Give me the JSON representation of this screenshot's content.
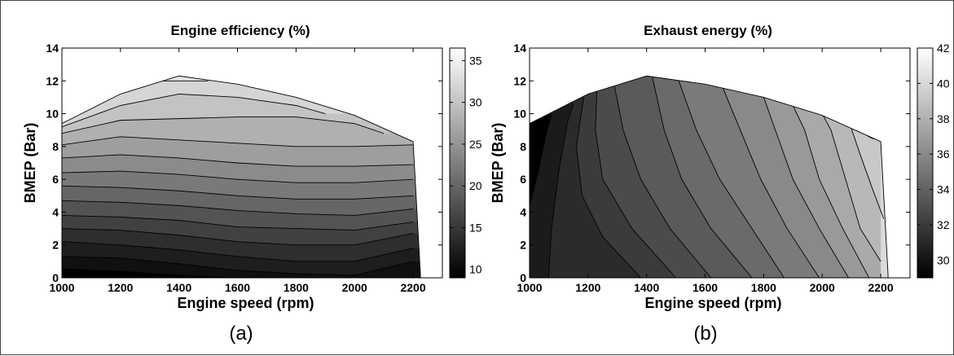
{
  "chart_data": [
    {
      "type": "heatmap",
      "subtype": "filled-contour",
      "title": "Engine efficiency (%)",
      "xlabel": "Engine speed (rpm)",
      "ylabel": "BMEP (Bar)",
      "caption": "(a)",
      "xlim": [
        1000,
        2300
      ],
      "ylim": [
        0,
        14
      ],
      "xticks": [
        "1000",
        "1200",
        "1400",
        "1600",
        "1800",
        "2000",
        "2200"
      ],
      "yticks": [
        "0",
        "2",
        "4",
        "6",
        "8",
        "10",
        "12",
        "14"
      ],
      "colorbar": {
        "range": [
          9,
          36.5
        ],
        "ticks": [
          "10",
          "15",
          "20",
          "25",
          "30",
          "35"
        ],
        "colormap": "gray"
      },
      "boundary": [
        [
          1000,
          0
        ],
        [
          1000,
          9.4
        ],
        [
          1200,
          11.2
        ],
        [
          1400,
          12.3
        ],
        [
          1600,
          11.8
        ],
        [
          1800,
          11.0
        ],
        [
          2000,
          9.9
        ],
        [
          2200,
          8.3
        ],
        [
          2225,
          0.2
        ],
        [
          2225,
          0
        ]
      ],
      "contours": [
        {
          "level": 10,
          "points": [
            [
              1000,
              0.55
            ],
            [
              1200,
              0.4
            ],
            [
              1400,
              0.15
            ],
            [
              1600,
              0.0
            ]
          ]
        },
        {
          "level": 11.5,
          "points": [
            [
              1000,
              1.3
            ],
            [
              1200,
              1.2
            ],
            [
              1400,
              0.85
            ],
            [
              1600,
              0.45
            ],
            [
              1800,
              0.25
            ],
            [
              2000,
              0.15
            ],
            [
              2200,
              1.0
            ]
          ]
        },
        {
          "level": 13,
          "points": [
            [
              1000,
              2.2
            ],
            [
              1200,
              2.0
            ],
            [
              1400,
              1.7
            ],
            [
              1600,
              1.3
            ],
            [
              1800,
              1.0
            ],
            [
              2000,
              1.0
            ],
            [
              2200,
              1.8
            ]
          ]
        },
        {
          "level": 15,
          "points": [
            [
              1000,
              3.0
            ],
            [
              1200,
              2.9
            ],
            [
              1400,
              2.6
            ],
            [
              1600,
              2.2
            ],
            [
              1800,
              2.0
            ],
            [
              2000,
              2.0
            ],
            [
              2200,
              2.7
            ]
          ]
        },
        {
          "level": 17,
          "points": [
            [
              1000,
              3.8
            ],
            [
              1200,
              3.7
            ],
            [
              1400,
              3.5
            ],
            [
              1600,
              3.1
            ],
            [
              1800,
              3.0
            ],
            [
              2000,
              2.9
            ],
            [
              2200,
              3.4
            ]
          ]
        },
        {
          "level": 19,
          "points": [
            [
              1000,
              4.7
            ],
            [
              1200,
              4.6
            ],
            [
              1400,
              4.4
            ],
            [
              1600,
              4.1
            ],
            [
              1800,
              3.9
            ],
            [
              2000,
              3.8
            ],
            [
              2200,
              4.2
            ]
          ]
        },
        {
          "level": 21,
          "points": [
            [
              1000,
              5.6
            ],
            [
              1200,
              5.5
            ],
            [
              1400,
              5.3
            ],
            [
              1600,
              5.0
            ],
            [
              1800,
              4.8
            ],
            [
              2000,
              4.8
            ],
            [
              2200,
              5.0
            ]
          ]
        },
        {
          "level": 23,
          "points": [
            [
              1000,
              6.4
            ],
            [
              1200,
              6.5
            ],
            [
              1400,
              6.3
            ],
            [
              1600,
              6.0
            ],
            [
              1800,
              5.8
            ],
            [
              2000,
              5.8
            ],
            [
              2200,
              6.0
            ]
          ]
        },
        {
          "level": 25,
          "points": [
            [
              1000,
              7.3
            ],
            [
              1200,
              7.5
            ],
            [
              1400,
              7.3
            ],
            [
              1600,
              7.0
            ],
            [
              1800,
              6.8
            ],
            [
              2000,
              6.8
            ],
            [
              2200,
              6.9
            ]
          ]
        },
        {
          "level": 27,
          "points": [
            [
              1000,
              8.1
            ],
            [
              1200,
              8.6
            ],
            [
              1400,
              8.4
            ],
            [
              1600,
              8.2
            ],
            [
              1800,
              8.0
            ],
            [
              2000,
              8.0
            ],
            [
              2200,
              8.1
            ]
          ]
        },
        {
          "level": 29,
          "points": [
            [
              1000,
              8.8
            ],
            [
              1200,
              9.6
            ],
            [
              1400,
              9.7
            ],
            [
              1600,
              9.8
            ],
            [
              1800,
              9.8
            ],
            [
              2000,
              9.4
            ],
            [
              2100,
              8.8
            ]
          ]
        },
        {
          "level": 31,
          "points": [
            [
              1000,
              9.2
            ],
            [
              1200,
              10.5
            ],
            [
              1400,
              11.2
            ],
            [
              1600,
              11.0
            ],
            [
              1800,
              10.5
            ],
            [
              1900,
              10.0
            ]
          ]
        },
        {
          "level": 33,
          "points": [
            [
              1330,
              12.0
            ],
            [
              1400,
              12.0
            ],
            [
              1500,
              12.0
            ]
          ]
        }
      ]
    },
    {
      "type": "heatmap",
      "subtype": "filled-contour",
      "title": "Exhaust energy (%)",
      "xlabel": "Engine speed (rpm)",
      "ylabel": "BMEP (Bar)",
      "caption": "(b)",
      "xlim": [
        1000,
        2300
      ],
      "ylim": [
        0,
        14
      ],
      "xticks": [
        "1000",
        "1200",
        "1400",
        "1600",
        "1800",
        "2000",
        "2200"
      ],
      "yticks": [
        "0",
        "2",
        "4",
        "6",
        "8",
        "10",
        "12",
        "14"
      ],
      "colorbar": {
        "range": [
          29,
          42
        ],
        "ticks": [
          "30",
          "32",
          "34",
          "36",
          "38",
          "40",
          "42"
        ],
        "colormap": "gray"
      },
      "boundary": [
        [
          1000,
          0
        ],
        [
          1000,
          9.4
        ],
        [
          1200,
          11.2
        ],
        [
          1400,
          12.3
        ],
        [
          1600,
          11.8
        ],
        [
          1800,
          11.0
        ],
        [
          2000,
          9.9
        ],
        [
          2200,
          8.3
        ],
        [
          2225,
          0.2
        ],
        [
          2225,
          0
        ]
      ],
      "contours": [
        {
          "level": 30,
          "points": [
            [
              1000,
              4.4
            ],
            [
              1030,
              6.5
            ],
            [
              1060,
              9.0
            ],
            [
              1075,
              9.9
            ]
          ]
        },
        {
          "level": 30.8,
          "points": [
            [
              1065,
              0.0
            ],
            [
              1075,
              3.0
            ],
            [
              1100,
              6.5
            ],
            [
              1130,
              9.5
            ],
            [
              1150,
              10.6
            ]
          ]
        },
        {
          "level": 31.6,
          "points": [
            [
              1380,
              0.0
            ],
            [
              1250,
              2.5
            ],
            [
              1180,
              5.0
            ],
            [
              1160,
              8.0
            ],
            [
              1185,
              11.0
            ]
          ]
        },
        {
          "level": 32.4,
          "points": [
            [
              1500,
              0.0
            ],
            [
              1350,
              3.0
            ],
            [
              1250,
              6.0
            ],
            [
              1225,
              9.0
            ],
            [
              1230,
              11.4
            ]
          ]
        },
        {
          "level": 33.2,
          "points": [
            [
              1620,
              0.0
            ],
            [
              1480,
              3.0
            ],
            [
              1380,
              6.0
            ],
            [
              1320,
              9.0
            ],
            [
              1290,
              11.7
            ]
          ]
        },
        {
          "level": 34,
          "points": [
            [
              1760,
              0.0
            ],
            [
              1620,
              3.0
            ],
            [
              1520,
              6.0
            ],
            [
              1460,
              9.0
            ],
            [
              1420,
              12.2
            ]
          ]
        },
        {
          "level": 34.8,
          "points": [
            [
              1870,
              0.0
            ],
            [
              1760,
              3.0
            ],
            [
              1650,
              6.0
            ],
            [
              1570,
              9.0
            ],
            [
              1510,
              12.0
            ]
          ]
        },
        {
          "level": 35.6,
          "points": [
            [
              1990,
              0.0
            ],
            [
              1880,
              3.0
            ],
            [
              1790,
              6.0
            ],
            [
              1720,
              9.0
            ],
            [
              1660,
              11.6
            ]
          ]
        },
        {
          "level": 36.4,
          "points": [
            [
              2090,
              0.0
            ],
            [
              1990,
              3.0
            ],
            [
              1900,
              6.0
            ],
            [
              1840,
              9.0
            ],
            [
              1800,
              11.0
            ]
          ]
        },
        {
          "level": 37.2,
          "points": [
            [
              2160,
              0.0
            ],
            [
              2070,
              3.0
            ],
            [
              1990,
              6.0
            ],
            [
              1940,
              9.0
            ],
            [
              1900,
              10.5
            ]
          ]
        },
        {
          "level": 38,
          "points": [
            [
              2200,
              1.0
            ],
            [
              2130,
              3.0
            ],
            [
              2080,
              6.0
            ],
            [
              2030,
              9.0
            ],
            [
              2000,
              10.0
            ]
          ]
        },
        {
          "level": 38.8,
          "points": [
            [
              2210,
              3.6
            ],
            [
              2170,
              5.5
            ],
            [
              2130,
              7.5
            ],
            [
              2090,
              9.6
            ]
          ]
        },
        {
          "level": 39.6,
          "points": [
            [
              2200,
              8.4
            ],
            [
              2170,
              8.5
            ],
            [
              2150,
              8.7
            ]
          ]
        }
      ]
    }
  ]
}
